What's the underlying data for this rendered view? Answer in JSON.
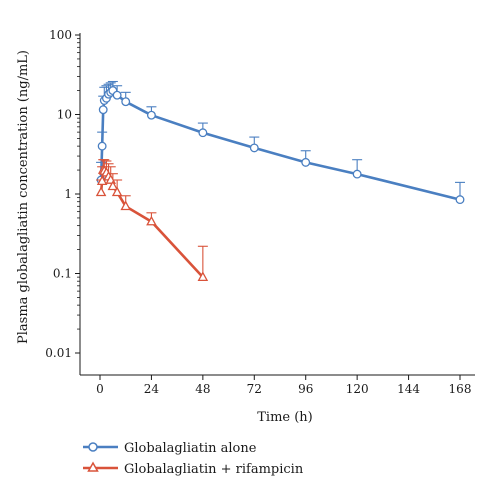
{
  "chart_data": {
    "type": "line",
    "title": "",
    "xlabel": "Time (h)",
    "ylabel": "Plasma globalagliatin concentration (ng/mL)",
    "x_scale": "linear",
    "y_scale": "log",
    "xlim": [
      -5,
      175
    ],
    "ylim": [
      0.005,
      100
    ],
    "x_ticks": [
      0,
      24,
      48,
      72,
      96,
      120,
      144,
      168
    ],
    "x_tick_labels": [
      "0",
      "24",
      "48",
      "72",
      "96",
      "120",
      "144",
      "168"
    ],
    "y_ticks": [
      0.01,
      0.1,
      1,
      10,
      100
    ],
    "y_tick_labels": [
      "0.01",
      "0.1",
      "1",
      "10",
      "100"
    ],
    "grid": false,
    "legend_position": "bottom-left",
    "series": [
      {
        "name": "Globalagliatin alone",
        "color": "#4a7fc1",
        "marker": "circle",
        "x": [
          0.5,
          1,
          1.5,
          2,
          3,
          4,
          5,
          6,
          8,
          12,
          24,
          48,
          72,
          96,
          120,
          168
        ],
        "y": [
          1.5,
          4,
          11.5,
          15,
          16,
          18,
          19,
          20,
          17.5,
          14.5,
          9.8,
          5.9,
          3.8,
          2.5,
          1.78,
          0.85
        ],
        "error_upper": [
          2.5,
          6,
          17,
          22,
          23,
          24,
          25,
          26,
          23,
          19,
          12.5,
          7.8,
          5.2,
          3.5,
          2.7,
          1.4
        ]
      },
      {
        "name": "Globalagliatin + rifampicin",
        "color": "#d9533a",
        "marker": "triangle",
        "x": [
          0.5,
          1,
          1.5,
          2,
          3,
          4,
          5,
          6,
          8,
          12,
          24,
          48
        ],
        "y": [
          1.05,
          1.45,
          2.0,
          1.95,
          1.85,
          1.65,
          1.5,
          1.25,
          1.05,
          0.7,
          0.45,
          0.09
        ],
        "error_upper": [
          1.5,
          2.2,
          2.7,
          2.7,
          2.6,
          2.4,
          2.2,
          1.8,
          1.5,
          0.95,
          0.58,
          0.22
        ]
      }
    ]
  }
}
